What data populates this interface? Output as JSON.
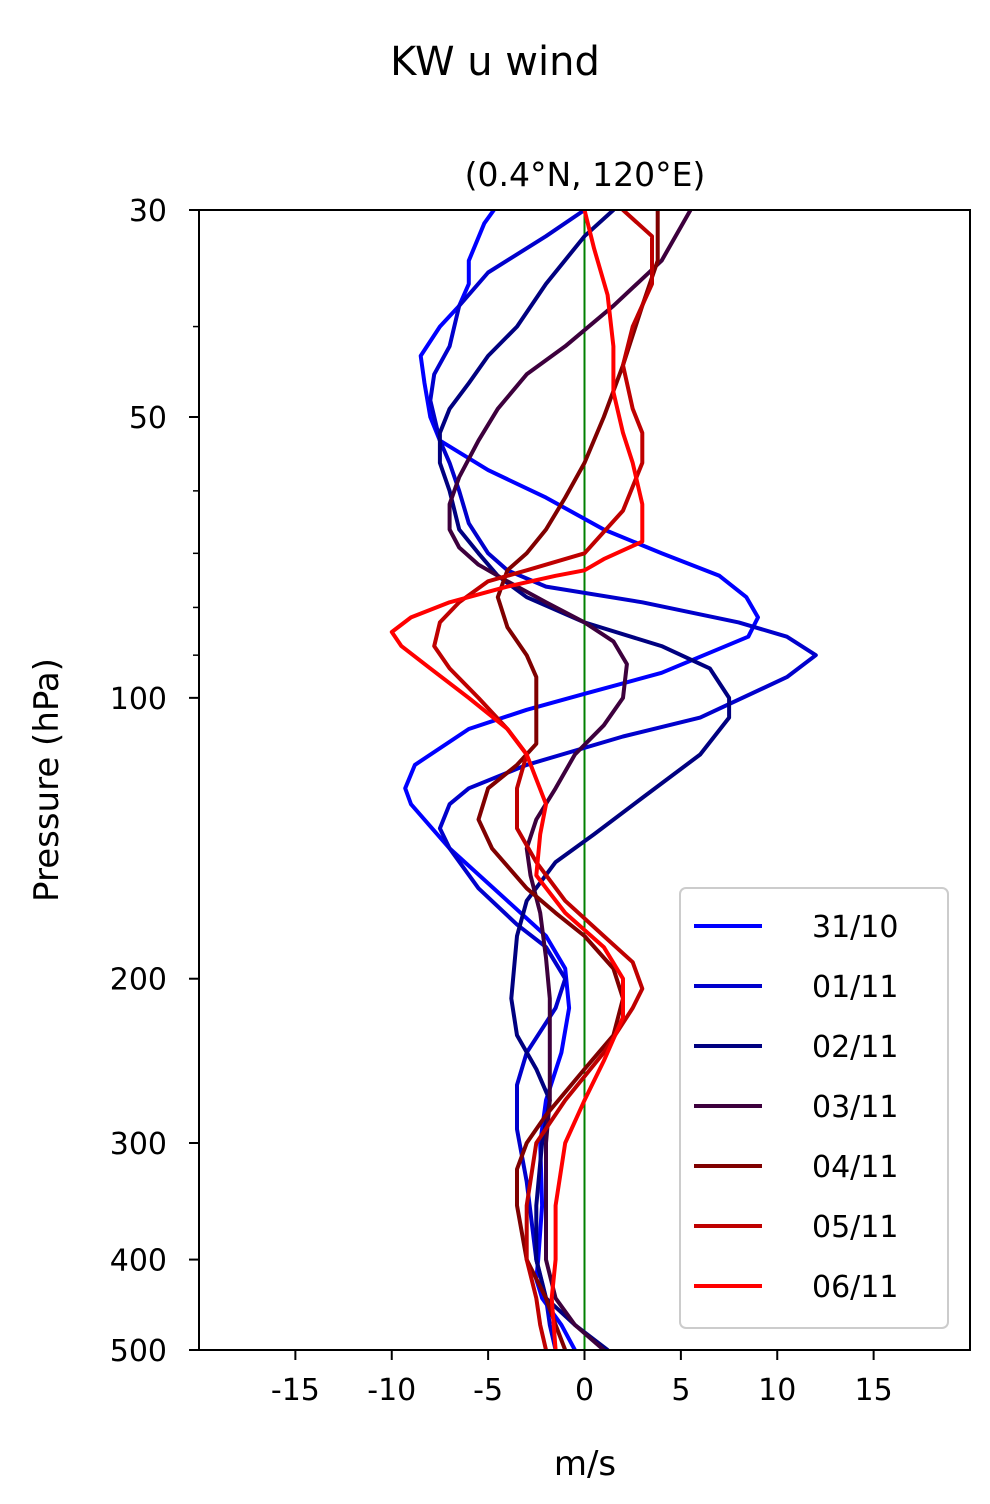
{
  "chart_data": {
    "type": "line",
    "title": "KW u wind",
    "subtitle": "(0.4°N, 120°E)",
    "xlabel": "m/s",
    "ylabel": "Pressure (hPa)",
    "xlim": [
      -20,
      20
    ],
    "ylim": [
      500,
      30
    ],
    "yscale": "log",
    "x_ticks": [
      -15,
      -10,
      -5,
      0,
      5,
      10,
      15
    ],
    "x_tick_labels": [
      "-15",
      "-10",
      "-5",
      "0",
      "5",
      "10",
      "15"
    ],
    "y_ticks": [
      30,
      50,
      100,
      200,
      300,
      400,
      500
    ],
    "y_tick_labels": [
      "30",
      "50",
      "100",
      "200",
      "300",
      "400",
      "500"
    ],
    "reference_line": {
      "x": 0,
      "color": "#008000"
    },
    "grid": false,
    "legend_position": "lower-right",
    "series": [
      {
        "name": "31/10",
        "color": "#0000ff",
        "points": [
          [
            -0.5,
            500
          ],
          [
            -1.2,
            470
          ],
          [
            -2.2,
            440
          ],
          [
            -2.5,
            420
          ],
          [
            -2.4,
            400
          ],
          [
            -2.2,
            350
          ],
          [
            -2.3,
            300
          ],
          [
            -2.0,
            270
          ],
          [
            -1.2,
            240
          ],
          [
            -0.8,
            215
          ],
          [
            -1.0,
            195
          ],
          [
            -2.0,
            180
          ],
          [
            -4.0,
            165
          ],
          [
            -7.0,
            145
          ],
          [
            -9.0,
            130
          ],
          [
            -9.3,
            125
          ],
          [
            -8.8,
            118
          ],
          [
            -6.0,
            108
          ],
          [
            -3.0,
            103
          ],
          [
            0.0,
            99
          ],
          [
            4.0,
            94
          ],
          [
            8.5,
            86
          ],
          [
            9.0,
            82
          ],
          [
            8.4,
            78
          ],
          [
            7.0,
            74
          ],
          [
            4.0,
            70
          ],
          [
            1.0,
            66
          ],
          [
            -2.0,
            61
          ],
          [
            -5.0,
            57
          ],
          [
            -7.5,
            53
          ],
          [
            -8.0,
            50
          ],
          [
            -8.3,
            46
          ],
          [
            -8.5,
            43
          ],
          [
            -7.5,
            40
          ],
          [
            -6.5,
            38
          ],
          [
            -6.0,
            36
          ],
          [
            -6.0,
            34
          ],
          [
            -5.2,
            31
          ],
          [
            -4.7,
            30
          ]
        ]
      },
      {
        "name": "01/11",
        "color": "#0000cc",
        "points": [
          [
            -1.5,
            500
          ],
          [
            -1.8,
            470
          ],
          [
            -2.0,
            440
          ],
          [
            -2.5,
            400
          ],
          [
            -3.0,
            330
          ],
          [
            -3.5,
            290
          ],
          [
            -3.5,
            260
          ],
          [
            -3.0,
            240
          ],
          [
            -1.5,
            215
          ],
          [
            -1.0,
            200
          ],
          [
            -2.0,
            185
          ],
          [
            -3.5,
            175
          ],
          [
            -5.5,
            160
          ],
          [
            -7.0,
            145
          ],
          [
            -7.5,
            138
          ],
          [
            -7.0,
            130
          ],
          [
            -6.0,
            125
          ],
          [
            -3.0,
            118
          ],
          [
            2.0,
            110
          ],
          [
            6.0,
            105
          ],
          [
            10.5,
            95
          ],
          [
            12.0,
            90
          ],
          [
            10.5,
            86
          ],
          [
            8.0,
            83
          ],
          [
            3.0,
            79
          ],
          [
            -2.0,
            76
          ],
          [
            -4.0,
            73
          ],
          [
            -5.0,
            70
          ],
          [
            -6.0,
            65
          ],
          [
            -6.5,
            60
          ],
          [
            -7.0,
            56
          ],
          [
            -7.5,
            53
          ],
          [
            -8.0,
            48
          ],
          [
            -7.8,
            45
          ],
          [
            -7.0,
            42
          ],
          [
            -6.5,
            38
          ],
          [
            -5.0,
            35
          ],
          [
            -2.0,
            32
          ],
          [
            0.0,
            30
          ]
        ]
      },
      {
        "name": "02/11",
        "color": "#000080",
        "points": [
          [
            1.2,
            500
          ],
          [
            -0.5,
            470
          ],
          [
            -2.0,
            440
          ],
          [
            -2.5,
            400
          ],
          [
            -2.5,
            350
          ],
          [
            -2.2,
            300
          ],
          [
            -1.8,
            270
          ],
          [
            -2.5,
            250
          ],
          [
            -3.5,
            230
          ],
          [
            -3.8,
            210
          ],
          [
            -3.5,
            180
          ],
          [
            -3.0,
            165
          ],
          [
            -1.5,
            150
          ],
          [
            0.5,
            140
          ],
          [
            3.0,
            128
          ],
          [
            6.0,
            115
          ],
          [
            7.5,
            105
          ],
          [
            7.5,
            100
          ],
          [
            6.5,
            93
          ],
          [
            4.0,
            88
          ],
          [
            0.0,
            83
          ],
          [
            -3.0,
            78
          ],
          [
            -4.5,
            74
          ],
          [
            -5.5,
            70
          ],
          [
            -6.5,
            66
          ],
          [
            -7.0,
            60
          ],
          [
            -7.5,
            56
          ],
          [
            -7.5,
            52
          ],
          [
            -7.0,
            49
          ],
          [
            -6.0,
            46
          ],
          [
            -5.0,
            43
          ],
          [
            -3.5,
            40
          ],
          [
            -2.0,
            36
          ],
          [
            0.0,
            32
          ],
          [
            1.5,
            30
          ]
        ]
      },
      {
        "name": "03/11",
        "color": "#3d003d",
        "points": [
          [
            1.0,
            500
          ],
          [
            -0.5,
            470
          ],
          [
            -1.5,
            440
          ],
          [
            -2.0,
            400
          ],
          [
            -2.0,
            350
          ],
          [
            -2.0,
            300
          ],
          [
            -1.8,
            270
          ],
          [
            -1.8,
            240
          ],
          [
            -1.8,
            210
          ],
          [
            -2.0,
            190
          ],
          [
            -2.3,
            170
          ],
          [
            -2.8,
            155
          ],
          [
            -3.0,
            145
          ],
          [
            -2.5,
            135
          ],
          [
            -1.5,
            125
          ],
          [
            -0.5,
            115
          ],
          [
            1.0,
            107
          ],
          [
            2.0,
            100
          ],
          [
            2.2,
            92
          ],
          [
            1.5,
            87
          ],
          [
            0.0,
            83
          ],
          [
            -2.0,
            79
          ],
          [
            -4.0,
            75
          ],
          [
            -5.5,
            72
          ],
          [
            -6.5,
            69
          ],
          [
            -7.0,
            66
          ],
          [
            -7.0,
            62
          ],
          [
            -6.5,
            58
          ],
          [
            -5.5,
            53
          ],
          [
            -4.5,
            49
          ],
          [
            -3.0,
            45
          ],
          [
            -1.0,
            42
          ],
          [
            1.5,
            38
          ],
          [
            4.0,
            34
          ],
          [
            5.5,
            30
          ]
        ]
      },
      {
        "name": "04/11",
        "color": "#800000",
        "points": [
          [
            -1.0,
            500
          ],
          [
            -1.5,
            470
          ],
          [
            -2.0,
            440
          ],
          [
            -3.0,
            400
          ],
          [
            -3.5,
            350
          ],
          [
            -3.5,
            320
          ],
          [
            -3.0,
            300
          ],
          [
            -2.0,
            280
          ],
          [
            0.0,
            250
          ],
          [
            1.5,
            230
          ],
          [
            2.0,
            210
          ],
          [
            1.5,
            195
          ],
          [
            0.0,
            180
          ],
          [
            -1.5,
            170
          ],
          [
            -3.0,
            160
          ],
          [
            -4.8,
            145
          ],
          [
            -5.5,
            135
          ],
          [
            -5.0,
            125
          ],
          [
            -3.5,
            118
          ],
          [
            -2.5,
            112
          ],
          [
            -2.5,
            107
          ],
          [
            -2.5,
            100
          ],
          [
            -2.5,
            95
          ],
          [
            -3.0,
            90
          ],
          [
            -4.0,
            84
          ],
          [
            -4.5,
            78
          ],
          [
            -4.0,
            73
          ],
          [
            -3.0,
            70
          ],
          [
            -2.0,
            66
          ],
          [
            -1.0,
            61
          ],
          [
            0.0,
            56
          ],
          [
            1.0,
            50
          ],
          [
            2.0,
            44
          ],
          [
            3.0,
            38
          ],
          [
            3.8,
            34
          ],
          [
            3.8,
            30
          ]
        ]
      },
      {
        "name": "05/11",
        "color": "#bf0000",
        "points": [
          [
            -2.0,
            500
          ],
          [
            -2.3,
            470
          ],
          [
            -2.5,
            440
          ],
          [
            -3.0,
            400
          ],
          [
            -3.0,
            350
          ],
          [
            -2.5,
            300
          ],
          [
            -1.0,
            270
          ],
          [
            1.0,
            240
          ],
          [
            2.5,
            215
          ],
          [
            3.0,
            205
          ],
          [
            2.5,
            192
          ],
          [
            1.0,
            180
          ],
          [
            -1.0,
            165
          ],
          [
            -2.5,
            150
          ],
          [
            -3.5,
            138
          ],
          [
            -3.5,
            125
          ],
          [
            -3.0,
            115
          ],
          [
            -4.0,
            108
          ],
          [
            -5.5,
            100
          ],
          [
            -7.0,
            93
          ],
          [
            -7.8,
            88
          ],
          [
            -7.5,
            83
          ],
          [
            -6.5,
            79
          ],
          [
            -5.0,
            75
          ],
          [
            -3.0,
            73
          ],
          [
            0.0,
            70
          ],
          [
            2.0,
            63
          ],
          [
            3.0,
            56
          ],
          [
            3.0,
            52
          ],
          [
            2.5,
            49
          ],
          [
            2.0,
            44
          ],
          [
            2.5,
            40
          ],
          [
            3.5,
            36
          ],
          [
            3.5,
            32
          ],
          [
            2.0,
            30
          ]
        ]
      },
      {
        "name": "06/11",
        "color": "#ff0000",
        "points": [
          [
            -1.5,
            500
          ],
          [
            -1.6,
            470
          ],
          [
            -1.7,
            440
          ],
          [
            -1.5,
            400
          ],
          [
            -1.5,
            350
          ],
          [
            -1.0,
            300
          ],
          [
            0.0,
            270
          ],
          [
            1.0,
            245
          ],
          [
            2.0,
            220
          ],
          [
            2.0,
            200
          ],
          [
            1.0,
            185
          ],
          [
            -1.0,
            170
          ],
          [
            -2.5,
            155
          ],
          [
            -2.3,
            140
          ],
          [
            -2.0,
            130
          ],
          [
            -3.0,
            115
          ],
          [
            -4.0,
            108
          ],
          [
            -6.0,
            100
          ],
          [
            -8.0,
            93
          ],
          [
            -9.5,
            88
          ],
          [
            -10.0,
            85
          ],
          [
            -9.0,
            82
          ],
          [
            -7.0,
            79
          ],
          [
            -4.0,
            76
          ],
          [
            -1.5,
            74
          ],
          [
            0.0,
            73
          ],
          [
            1.0,
            71
          ],
          [
            3.0,
            68
          ],
          [
            3.0,
            62
          ],
          [
            2.5,
            56
          ],
          [
            2.0,
            52
          ],
          [
            1.5,
            47
          ],
          [
            1.5,
            42
          ],
          [
            1.2,
            37
          ],
          [
            0.5,
            33
          ],
          [
            0.0,
            30
          ]
        ]
      }
    ]
  }
}
